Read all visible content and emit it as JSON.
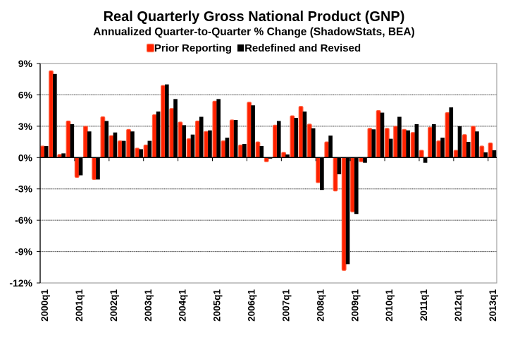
{
  "chart_data": {
    "type": "bar",
    "title": "Real Quarterly Gross National Product (GNP)",
    "subtitle": "Annualized Quarter-to-Quarter % Change (ShadowStats, BEA)",
    "xlabel": "",
    "ylabel": "",
    "ylim": [
      -12,
      9
    ],
    "yticks": [
      9,
      6,
      3,
      0,
      -3,
      -6,
      -9,
      -12
    ],
    "ytick_labels": [
      "9%",
      "6%",
      "3%",
      "0%",
      "-3%",
      "-6%",
      "-9%",
      "-12%"
    ],
    "grid": true,
    "legend_position": "top-center",
    "xtick_labels": [
      "2000q1",
      "2001q1",
      "2002q1",
      "2003q1",
      "2004q1",
      "2005q1",
      "2006q1",
      "2007q1",
      "2008q1",
      "2009q1",
      "2010q1",
      "2011q1",
      "2012q1",
      "2013q1"
    ],
    "categories": [
      "2000q1",
      "2000q2",
      "2000q3",
      "2000q4",
      "2001q1",
      "2001q2",
      "2001q3",
      "2001q4",
      "2002q1",
      "2002q2",
      "2002q3",
      "2002q4",
      "2003q1",
      "2003q2",
      "2003q3",
      "2003q4",
      "2004q1",
      "2004q2",
      "2004q3",
      "2004q4",
      "2005q1",
      "2005q2",
      "2005q3",
      "2005q4",
      "2006q1",
      "2006q2",
      "2006q3",
      "2006q4",
      "2007q1",
      "2007q2",
      "2007q3",
      "2007q4",
      "2008q1",
      "2008q2",
      "2008q3",
      "2008q4",
      "2009q1",
      "2009q2",
      "2009q3",
      "2009q4",
      "2010q1",
      "2010q2",
      "2010q3",
      "2010q4",
      "2011q1",
      "2011q2",
      "2011q3",
      "2011q4",
      "2012q1",
      "2012q2",
      "2012q3",
      "2012q4",
      "2013q1"
    ],
    "series": [
      {
        "name": "Prior Reporting",
        "color": "#ff2200",
        "values": [
          1.1,
          8.3,
          0.3,
          3.5,
          -1.9,
          3.0,
          -2.1,
          3.9,
          2.1,
          1.6,
          2.7,
          0.9,
          1.2,
          4.1,
          6.9,
          4.7,
          3.4,
          1.8,
          3.5,
          2.5,
          5.4,
          1.6,
          3.6,
          1.2,
          5.3,
          1.5,
          -0.4,
          3.1,
          0.5,
          4.0,
          4.9,
          3.2,
          -2.4,
          1.5,
          -3.2,
          -10.8,
          -5.2,
          -0.4,
          2.8,
          4.5,
          2.8,
          3.0,
          2.7,
          2.4,
          0.7,
          2.9,
          1.6,
          4.3,
          0.7,
          2.2,
          3.0,
          1.1,
          1.4
        ]
      },
      {
        "name": "Redefined and Revised",
        "color": "#000000",
        "values": [
          1.1,
          8.0,
          0.4,
          3.2,
          -1.7,
          2.5,
          -2.1,
          3.5,
          2.4,
          1.6,
          2.5,
          0.8,
          1.6,
          4.4,
          7.0,
          5.6,
          3.1,
          2.2,
          3.9,
          2.6,
          5.6,
          1.9,
          3.6,
          1.3,
          5.0,
          1.1,
          -0.1,
          3.5,
          0.3,
          3.8,
          4.4,
          2.8,
          -3.1,
          2.1,
          -1.6,
          -10.2,
          -5.4,
          -0.5,
          2.7,
          4.3,
          1.8,
          3.9,
          2.6,
          3.2,
          -0.5,
          3.2,
          1.9,
          4.8,
          3.0,
          1.5,
          2.5,
          0.5,
          0.7
        ]
      }
    ]
  }
}
